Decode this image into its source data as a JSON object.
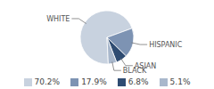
{
  "chart_data": {
    "type": "pie",
    "categories": [
      "WHITE",
      "HISPANIC",
      "ASIAN",
      "BLACK"
    ],
    "values": [
      70.2,
      17.9,
      6.8,
      5.1
    ],
    "value_labels": [
      "70.2%",
      "17.9%",
      "6.8%",
      "5.1%"
    ],
    "colors": [
      "#c8d2df",
      "#7d93b3",
      "#2f4c72",
      "#a9b8cc"
    ],
    "legend": "bottom"
  }
}
